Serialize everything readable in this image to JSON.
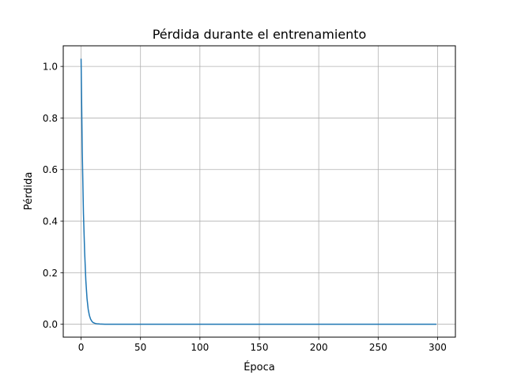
{
  "chart_data": {
    "type": "line",
    "title": "Pérdida durante el entrenamiento",
    "xlabel": "Época",
    "ylabel": "Pérdida",
    "xlim": [
      -15,
      315
    ],
    "ylim": [
      -0.05,
      1.08
    ],
    "xticks": [
      0,
      50,
      100,
      150,
      200,
      250,
      300
    ],
    "yticks": [
      0.0,
      0.2,
      0.4,
      0.6,
      0.8,
      1.0
    ],
    "grid": true,
    "legend": "none",
    "series": [
      {
        "color": "#1f77b4",
        "x": [
          0,
          1,
          2,
          3,
          4,
          5,
          6,
          7,
          8,
          9,
          10,
          12,
          14,
          16,
          20,
          25,
          30,
          40,
          50,
          75,
          100,
          150,
          200,
          250,
          299
        ],
        "y": [
          1.03,
          0.67,
          0.43,
          0.28,
          0.17,
          0.1,
          0.058,
          0.034,
          0.02,
          0.012,
          0.007,
          0.003,
          0.0015,
          0.0008,
          0.0003,
          0.0001,
          5e-05,
          2e-05,
          1e-05,
          0.0,
          0.0,
          0.0,
          0.0,
          0.0,
          0.0
        ]
      }
    ]
  }
}
